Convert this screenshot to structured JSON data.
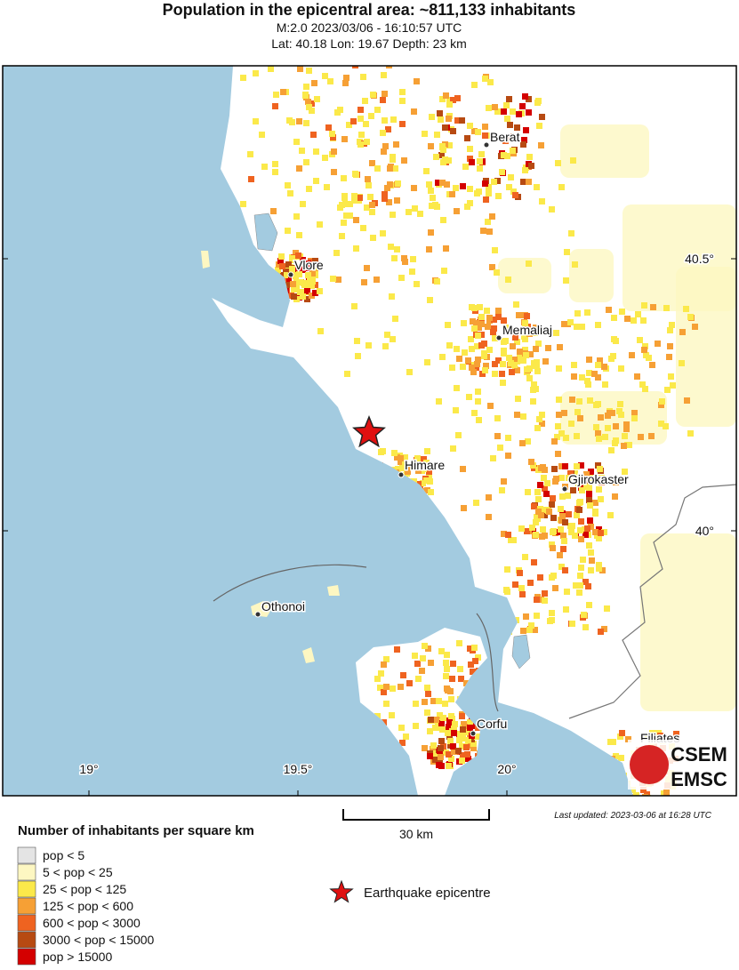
{
  "header": {
    "title": "Population in the epicentral area: ~811,133 inhabitants",
    "subtitle": "M:2.0 2023/03/06 - 16:10:57 UTC",
    "location": "Lat: 40.18 Lon: 19.67 Depth: 23 km"
  },
  "map": {
    "lon_labels": [
      "19°",
      "19.5°",
      "20°"
    ],
    "lat_labels": [
      "40.5°",
      "40°"
    ],
    "cities": [
      {
        "label": "Berat"
      },
      {
        "label": "Vlore"
      },
      {
        "label": "Memaliaj"
      },
      {
        "label": "Himare"
      },
      {
        "label": "Gjirokaster"
      },
      {
        "label": "Othonoi"
      },
      {
        "label": "Corfu"
      },
      {
        "label": "Filiates"
      }
    ],
    "scale_bar": "30 km",
    "last_updated": "Last updated: 2023-03-06 at 16:28 UTC",
    "logo": [
      "CSEM",
      "EMSC"
    ]
  },
  "legend": {
    "title": "Number of inhabitants per square km",
    "items": [
      {
        "label": "pop < 5",
        "color": "#e4e4e4"
      },
      {
        "label": "5 < pop < 25",
        "color": "#fdf7c2"
      },
      {
        "label": "25 < pop < 125",
        "color": "#fbe94a"
      },
      {
        "label": "125 < pop < 600",
        "color": "#f6a035"
      },
      {
        "label": "600 < pop < 3000",
        "color": "#ef6320"
      },
      {
        "label": "3000 < pop < 15000",
        "color": "#b74a12"
      },
      {
        "label": "pop > 15000",
        "color": "#d40000"
      }
    ],
    "epicentre": "Earthquake epicentre"
  }
}
